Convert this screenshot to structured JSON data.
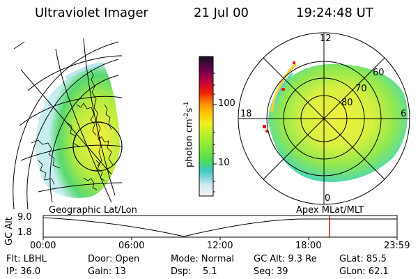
{
  "header": {
    "title": "Ultraviolet Imager",
    "date": "21 Jul 00",
    "time": "19:24:48 UT"
  },
  "colorbar": {
    "label_main": "photon cm",
    "label_exp1": "-2",
    "label_s": "s",
    "label_exp2": "-1",
    "tick_100": "100",
    "tick_10": "10"
  },
  "polar_plot": {
    "mlt_12": "12",
    "mlt_18": "18",
    "mlt_6": "6",
    "mlt_0": "0",
    "lat_60": "60",
    "lat_70": "70",
    "lat_80": "80"
  },
  "timeline": {
    "left_label": "Geographic Lat/Lon",
    "right_label": "Apex MLat/MLT",
    "axis_title": "GC Alt",
    "y_top": "9.0",
    "y_bottom": "1.8",
    "x_ticks": [
      "00:00",
      "06:00",
      "12:00",
      "18:00",
      "23:59"
    ],
    "marker_color": "#d00000"
  },
  "info": {
    "filter": "Flt: LBHL",
    "door": "Door: Open",
    "mode": "Mode: Normal",
    "gc_alt": "GC Alt: 9.3 Re",
    "glat": "GLat: 85.5",
    "ip": "IP: 36.0",
    "gain": "Gain: 13",
    "dsp": "Dsp:    5.1",
    "seq": "Seq: 39",
    "glon": "GLon: 62.1"
  }
}
